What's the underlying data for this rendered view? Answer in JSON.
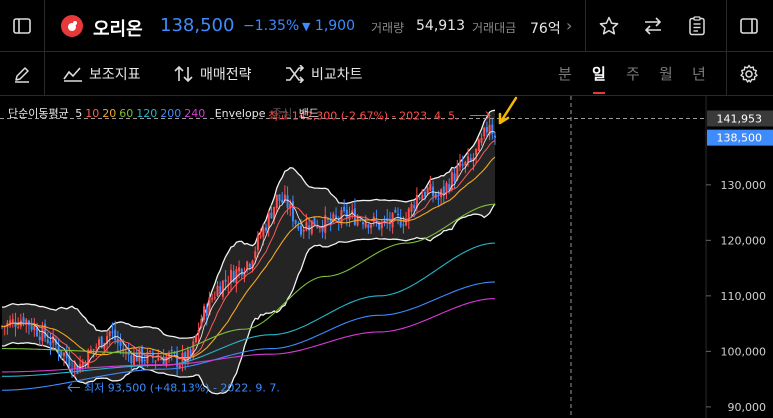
{
  "header": {
    "stock_name": "오리온",
    "price": "138,500",
    "change_pct": "−1.35%",
    "change_arrow": "▼",
    "change_value": "1,900",
    "volume_label": "거래량",
    "volume_value": "54,913",
    "amount_label": "거래대금",
    "amount_value": "76억",
    "more_arrow": "›"
  },
  "toolbar": {
    "indicator_label": "보조지표",
    "strategy_label": "매매전략",
    "compare_label": "비교차트",
    "periods": [
      "분",
      "일",
      "주",
      "월",
      "년"
    ],
    "active_period": "일"
  },
  "legend": {
    "ma_name": "단순이동평균",
    "ma_periods": [
      {
        "value": "5",
        "color": "#e6e6e6"
      },
      {
        "value": "10",
        "color": "#ff5a5a"
      },
      {
        "value": "20",
        "color": "#f5a623"
      },
      {
        "value": "60",
        "color": "#7dbf3a"
      },
      {
        "value": "120",
        "color": "#26b5c9"
      },
      {
        "value": "200",
        "color": "#3d8bfd"
      },
      {
        "value": "240",
        "color": "#d63ad6"
      }
    ],
    "envelope": "Envelope",
    "envelope_mid": "중심",
    "band": "밴드"
  },
  "chart_data": {
    "type": "candlestick",
    "ylim": [
      88000,
      146000
    ],
    "y_ticks": [
      90000,
      100000,
      110000,
      120000,
      130000
    ],
    "y_tick_labels": [
      "90,000",
      "100,000",
      "110,000",
      "120,000",
      "130,000"
    ],
    "current_price_label": "138,500",
    "crosshair_price_label": "141,953",
    "crosshair_price": 141953,
    "high_annotation": "최고 142,300 (-2.67%) - 2023. 4. 5.",
    "high_value": 142300,
    "low_annotation": "최저 93,500 (+48.13%) - 2022. 9. 7.",
    "low_value": 93500,
    "up_color": "#ff4d4d",
    "down_color": "#3d8bfd"
  }
}
